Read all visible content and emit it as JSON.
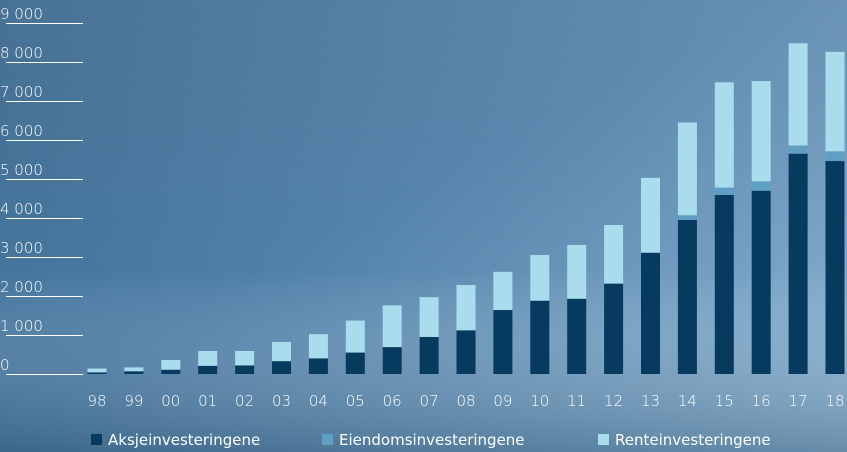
{
  "chart_data": {
    "type": "bar",
    "stacked": true,
    "categories": [
      "98",
      "99",
      "00",
      "01",
      "02",
      "03",
      "04",
      "05",
      "06",
      "07",
      "08",
      "09",
      "10",
      "11",
      "12",
      "13",
      "14",
      "15",
      "16",
      "17",
      "18"
    ],
    "series": [
      {
        "name": "Aksjeinvesteringene",
        "color": "#063a5e",
        "values": [
          40,
          70,
          110,
          210,
          220,
          330,
          400,
          550,
          690,
          950,
          1120,
          1640,
          1880,
          1930,
          2310,
          3110,
          3950,
          4590,
          4700,
          5650,
          5460
        ]
      },
      {
        "name": "Eiendomsinvesteringene",
        "color": "#5f9fc4",
        "values": [
          0,
          0,
          0,
          0,
          0,
          0,
          0,
          0,
          0,
          0,
          0,
          0,
          0,
          0,
          20,
          0,
          120,
          190,
          240,
          210,
          250
        ]
      },
      {
        "name": "Renteinvesteringene",
        "color": "#a9dded",
        "values": [
          100,
          100,
          250,
          380,
          370,
          490,
          620,
          820,
          1070,
          1020,
          1160,
          980,
          1170,
          1380,
          1490,
          1920,
          2380,
          2700,
          2570,
          2620,
          2550
        ]
      }
    ],
    "ylim": [
      0,
      9000
    ],
    "yticks": [
      {
        "value": 0,
        "label": "0"
      },
      {
        "value": 1000,
        "label": "1 000"
      },
      {
        "value": 2000,
        "label": "2 000"
      },
      {
        "value": 3000,
        "label": "3 000"
      },
      {
        "value": 4000,
        "label": "4 000"
      },
      {
        "value": 5000,
        "label": "5 000"
      },
      {
        "value": 6000,
        "label": "6 000"
      },
      {
        "value": 7000,
        "label": "7 000"
      },
      {
        "value": 8000,
        "label": "8 000"
      },
      {
        "value": 9000,
        "label": "9 000"
      }
    ],
    "title": "",
    "xlabel": "",
    "ylabel": "",
    "grid": false,
    "legend_position": "bottom"
  }
}
